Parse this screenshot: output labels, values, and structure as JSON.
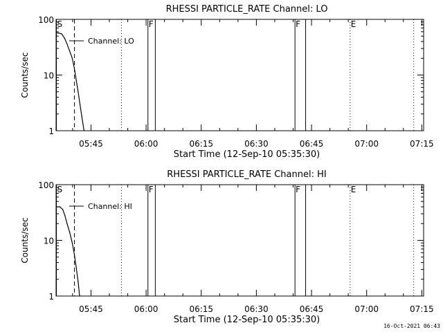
{
  "footer_date": "16-Oct-2021 06:43",
  "chart_data": [
    {
      "type": "line",
      "title": "RHESSI PARTICLE_RATE Channel: LO",
      "xlabel": "Start Time (12-Sep-10 05:35:30)",
      "ylabel": "Counts/sec",
      "yscale": "log",
      "ylim": [
        1,
        100
      ],
      "y_ticks": [
        {
          "value": 1,
          "label": "1"
        },
        {
          "value": 10,
          "label": "10"
        },
        {
          "value": 100,
          "label": "100"
        }
      ],
      "xlim_minutes": [
        35.5,
        135.5
      ],
      "x_ticks": [
        {
          "value": 45,
          "label": "05:45"
        },
        {
          "value": 60,
          "label": "06:00"
        },
        {
          "value": 75,
          "label": "06:15"
        },
        {
          "value": 90,
          "label": "06:30"
        },
        {
          "value": 105,
          "label": "06:45"
        },
        {
          "value": 120,
          "label": "07:00"
        },
        {
          "value": 135,
          "label": "07:15"
        }
      ],
      "legend": {
        "label": "Channel: LO",
        "position": "top-left"
      },
      "series": [
        {
          "name": "Channel: LO",
          "x_minutes": [
            35.6,
            36.2,
            37.0,
            37.8,
            38.5,
            39.2,
            39.9,
            40.5,
            41.0,
            41.5,
            42.0,
            42.5,
            43.1
          ],
          "values": [
            57,
            57,
            55,
            46,
            36,
            27,
            20,
            13,
            8,
            5,
            3,
            1.8,
            1
          ]
        }
      ],
      "markers": [
        {
          "label": "S",
          "x_minutes": 35.6,
          "style": "solid"
        },
        {
          "label": "",
          "x_minutes": 40.5,
          "style": "dashed"
        },
        {
          "label": "",
          "x_minutes": 53.3,
          "style": "dotted"
        },
        {
          "label": "F",
          "x_minutes": 60.5,
          "style": "solid"
        },
        {
          "label": "",
          "x_minutes": 62.5,
          "style": "solid"
        },
        {
          "label": "F",
          "x_minutes": 100.5,
          "style": "solid"
        },
        {
          "label": "",
          "x_minutes": 103.4,
          "style": "solid"
        },
        {
          "label": "E",
          "x_minutes": 115.5,
          "style": "dotted"
        },
        {
          "label": "",
          "x_minutes": 132.8,
          "style": "dotted"
        }
      ]
    },
    {
      "type": "line",
      "title": "RHESSI PARTICLE_RATE Channel: HI",
      "xlabel": "Start Time (12-Sep-10 05:35:30)",
      "ylabel": "Counts/sec",
      "yscale": "log",
      "ylim": [
        1,
        100
      ],
      "y_ticks": [
        {
          "value": 1,
          "label": "1"
        },
        {
          "value": 10,
          "label": "10"
        },
        {
          "value": 100,
          "label": "100"
        }
      ],
      "xlim_minutes": [
        35.5,
        135.5
      ],
      "x_ticks": [
        {
          "value": 45,
          "label": "05:45"
        },
        {
          "value": 60,
          "label": "06:00"
        },
        {
          "value": 75,
          "label": "06:15"
        },
        {
          "value": 90,
          "label": "06:30"
        },
        {
          "value": 105,
          "label": "06:45"
        },
        {
          "value": 120,
          "label": "07:00"
        },
        {
          "value": 135,
          "label": "07:15"
        }
      ],
      "legend": {
        "label": "Channel: HI",
        "position": "top-left"
      },
      "series": [
        {
          "name": "Channel: HI",
          "x_minutes": [
            35.6,
            36.5,
            37.3,
            37.9,
            38.5,
            39.2,
            39.9,
            40.5,
            41.0,
            41.5,
            41.9
          ],
          "values": [
            40,
            40,
            36,
            28,
            20,
            14,
            9,
            5.5,
            3.2,
            1.8,
            1
          ]
        }
      ],
      "markers": [
        {
          "label": "S",
          "x_minutes": 35.6,
          "style": "solid"
        },
        {
          "label": "",
          "x_minutes": 40.5,
          "style": "dashed"
        },
        {
          "label": "",
          "x_minutes": 53.3,
          "style": "dotted"
        },
        {
          "label": "F",
          "x_minutes": 60.5,
          "style": "solid"
        },
        {
          "label": "",
          "x_minutes": 62.5,
          "style": "solid"
        },
        {
          "label": "F",
          "x_minutes": 100.5,
          "style": "solid"
        },
        {
          "label": "",
          "x_minutes": 103.4,
          "style": "solid"
        },
        {
          "label": "E",
          "x_minutes": 115.5,
          "style": "dotted"
        },
        {
          "label": "",
          "x_minutes": 132.8,
          "style": "dotted"
        }
      ]
    }
  ]
}
